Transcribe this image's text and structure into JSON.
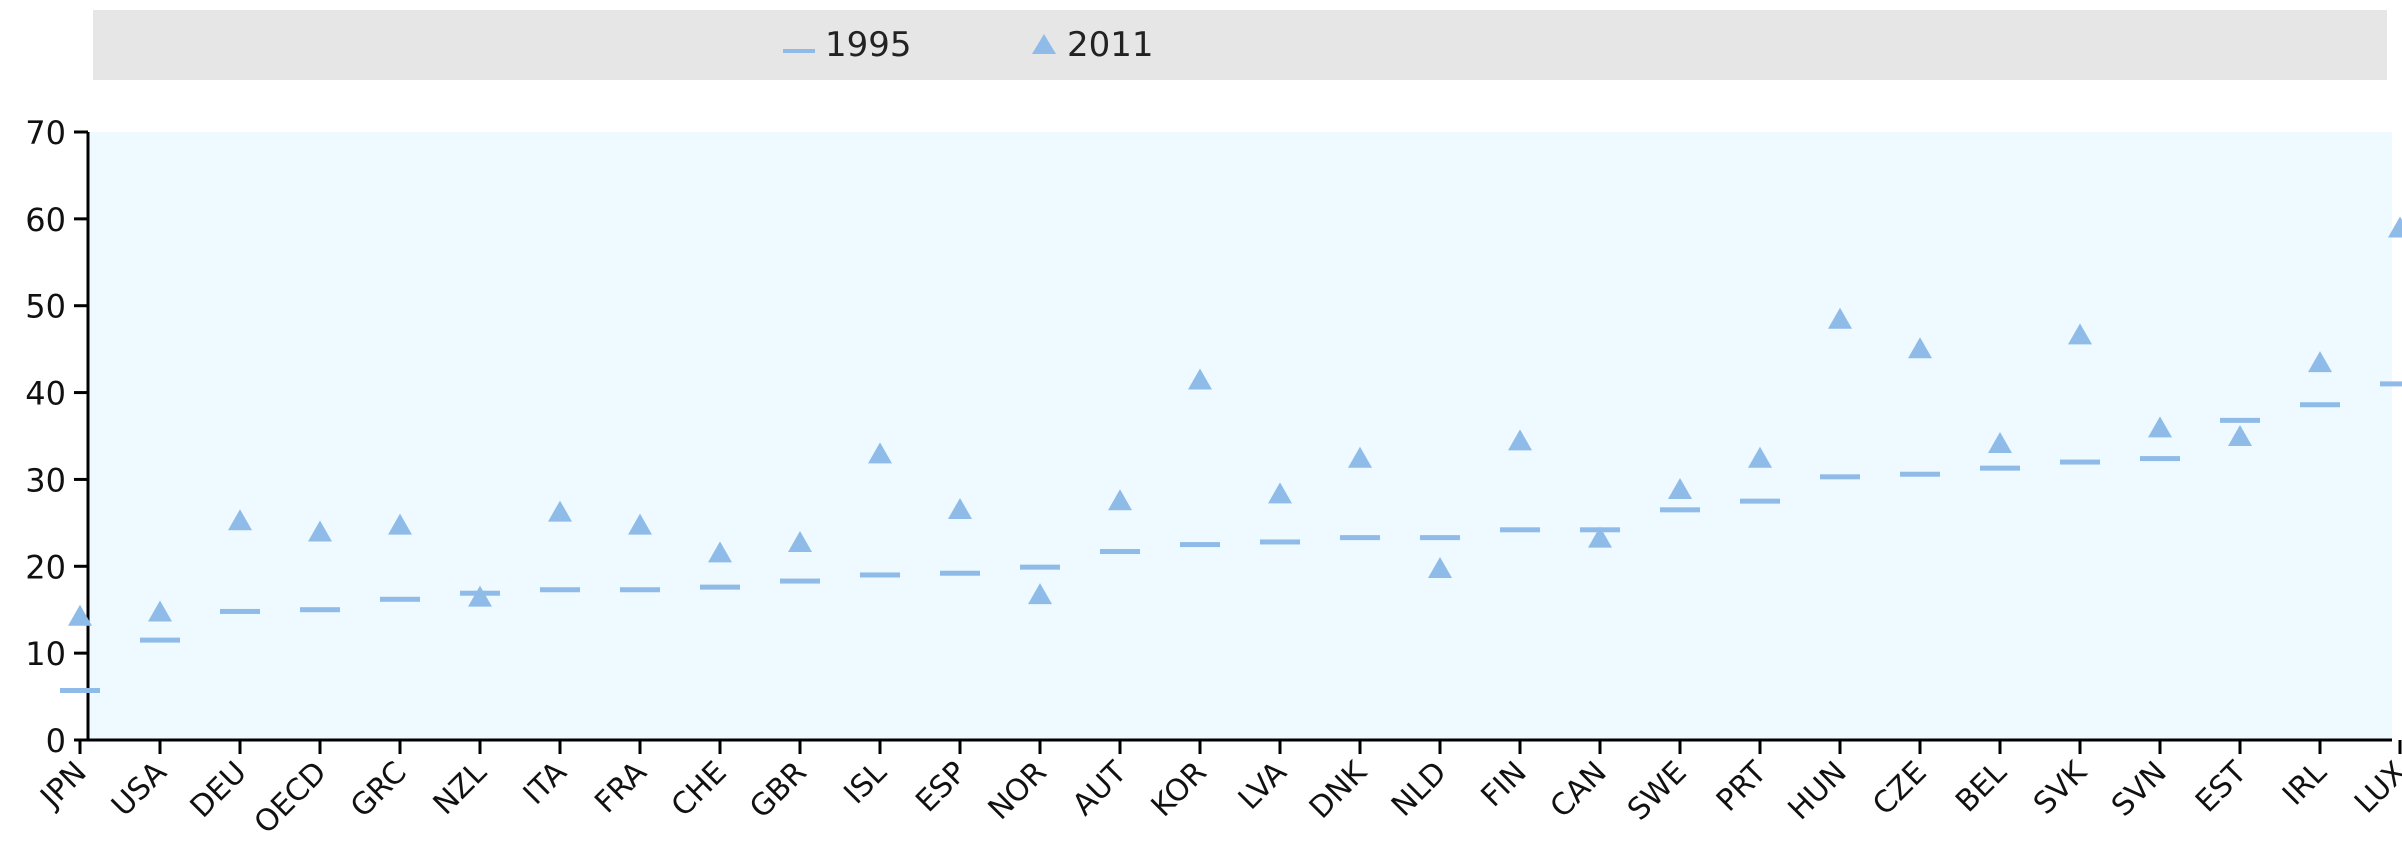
{
  "legend": {
    "position": "top",
    "items": [
      {
        "label": "1995",
        "symbol": "dash"
      },
      {
        "label": "2011",
        "symbol": "triangle"
      }
    ]
  },
  "chart_data": {
    "type": "scatter",
    "title": "",
    "xlabel": "",
    "ylabel": "",
    "ylim": [
      0,
      70
    ],
    "yticks": [
      0,
      10,
      20,
      30,
      40,
      50,
      60,
      70
    ],
    "grid": false,
    "categories": [
      "JPN",
      "USA",
      "DEU",
      "OECD",
      "GRC",
      "NZL",
      "ITA",
      "FRA",
      "CHE",
      "GBR",
      "ISL",
      "ESP",
      "NOR",
      "AUT",
      "KOR",
      "LVA",
      "DNK",
      "NLD",
      "FIN",
      "CAN",
      "SWE",
      "PRT",
      "HUN",
      "CZE",
      "BEL",
      "SVK",
      "SVN",
      "EST",
      "IRL",
      "LUX"
    ],
    "series": [
      {
        "name": "1995",
        "marker": "dash",
        "color": "#8fbbe8",
        "values": [
          5.7,
          11.5,
          14.8,
          15.0,
          16.2,
          16.9,
          17.3,
          17.3,
          17.6,
          18.3,
          19.0,
          19.2,
          19.9,
          21.7,
          22.5,
          22.8,
          23.3,
          23.3,
          24.2,
          24.2,
          26.5,
          27.5,
          30.3,
          30.6,
          31.3,
          32.0,
          32.4,
          36.8,
          38.6,
          41.0
        ]
      },
      {
        "name": "2011",
        "marker": "triangle",
        "color": "#8fbbe8",
        "values": [
          14.3,
          14.8,
          25.3,
          24.0,
          24.8,
          16.5,
          26.3,
          24.8,
          21.6,
          22.8,
          33.0,
          26.6,
          16.8,
          27.6,
          41.5,
          28.4,
          32.5,
          19.8,
          34.5,
          23.3,
          28.9,
          32.5,
          48.5,
          45.1,
          34.2,
          46.7,
          36.0,
          35.0,
          43.5,
          59.0
        ]
      }
    ]
  },
  "colors": {
    "plot_background": "#eefaff",
    "marker": "#8fbbe8",
    "legend_background": "#e6e6e6",
    "axis": "#000000"
  }
}
